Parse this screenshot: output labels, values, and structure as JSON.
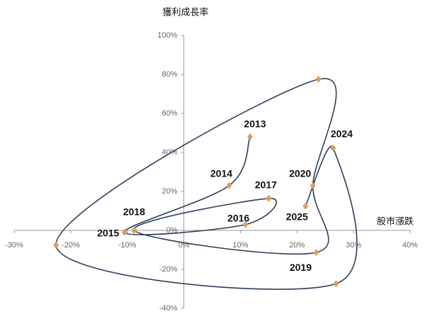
{
  "chart_data": {
    "type": "scatter-line",
    "ylabel": "獲利成長率",
    "xlabel": "股市漲跌",
    "categories": [
      "2013",
      "2014",
      "2015",
      "2016",
      "2017",
      "2018",
      "2019",
      "2020",
      null,
      null,
      null,
      "2024",
      "2025"
    ],
    "x": [
      11.7,
      8,
      -10.5,
      10.9,
      15,
      -8.8,
      23.4,
      22.8,
      23.8,
      -22.6,
      26.9,
      26.4,
      21.5
    ],
    "values": [
      48,
      23,
      -1,
      3,
      16.4,
      0,
      -11.3,
      22.9,
      77.5,
      -7.6,
      -27.3,
      42.2,
      12.4
    ],
    "line_color": "#2e3f5c",
    "marker_color": "#d9a05b",
    "xlim": [
      -30,
      40
    ],
    "xticks": [
      {
        "value": -30,
        "label": "-30%"
      },
      {
        "value": -20,
        "label": "-20%"
      },
      {
        "value": -10,
        "label": "-10%"
      },
      {
        "value": 0,
        "label": "0%"
      },
      {
        "value": 10,
        "label": "10%"
      },
      {
        "value": 20,
        "label": "20%"
      },
      {
        "value": 30,
        "label": "30%"
      },
      {
        "value": 40,
        "label": "40%"
      }
    ],
    "ylim": [
      -40,
      100
    ],
    "yticks": [
      {
        "value": -40,
        "label": "-40%"
      },
      {
        "value": -20,
        "label": "-20%"
      },
      {
        "value": 0,
        "label": "0%"
      },
      {
        "value": 20,
        "label": "20%"
      },
      {
        "value": 40,
        "label": "40%"
      },
      {
        "value": 60,
        "label": "60%"
      },
      {
        "value": 80,
        "label": "80%"
      },
      {
        "value": 100,
        "label": "100%"
      }
    ]
  }
}
